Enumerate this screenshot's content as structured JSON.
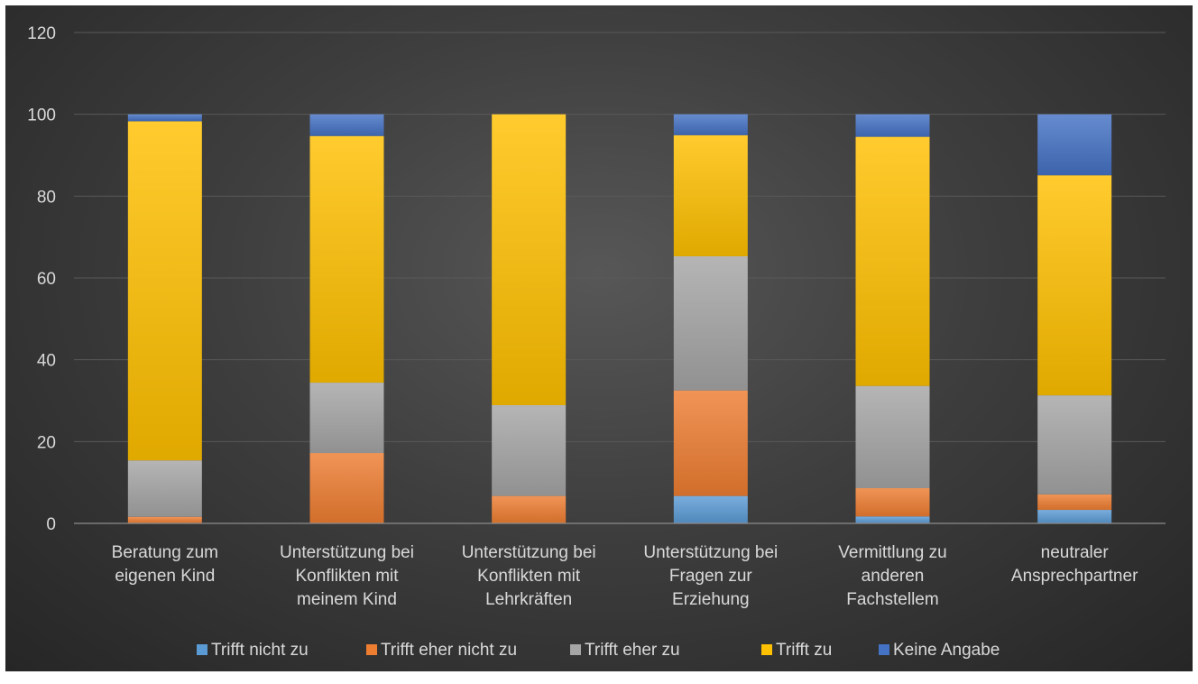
{
  "chart_data": {
    "type": "bar",
    "stacked": true,
    "title": "",
    "xlabel": "",
    "ylabel": "",
    "ylim": [
      0,
      120
    ],
    "yticks": [
      0,
      20,
      40,
      60,
      80,
      100,
      120
    ],
    "grid": true,
    "legend_position": "bottom",
    "categories": [
      [
        "Beratung zum",
        "eigenen Kind"
      ],
      [
        "Unterstützung bei",
        "Konflikten mit",
        "meinem Kind"
      ],
      [
        "Unterstützung bei",
        "Konflikten mit",
        "Lehrkräften"
      ],
      [
        "Unterstützung bei",
        "Fragen zur",
        "Erziehung"
      ],
      [
        "Vermittlung zu",
        "anderen",
        "Fachstellem"
      ],
      [
        "neutraler",
        "Ansprechpartner"
      ]
    ],
    "series": [
      {
        "name": "Trifft nicht zu",
        "color": "#5b9bd5",
        "values": [
          0,
          0,
          0,
          6.7,
          1.7,
          3.3
        ]
      },
      {
        "name": "Trifft eher nicht zu",
        "color": "#ed7d31",
        "values": [
          1.6,
          17.2,
          6.7,
          25.8,
          6.9,
          3.8
        ]
      },
      {
        "name": "Trifft eher zu",
        "color": "#a5a5a5",
        "values": [
          13.8,
          17.2,
          22.2,
          32.8,
          25.0,
          24.2
        ]
      },
      {
        "name": "Trifft zu",
        "color": "#ffc000",
        "values": [
          82.9,
          60.3,
          71.1,
          29.6,
          60.9,
          53.8
        ]
      },
      {
        "name": "Keine Angabe",
        "color": "#4472c4",
        "values": [
          1.7,
          5.3,
          0,
          5.1,
          5.5,
          14.9
        ]
      }
    ]
  }
}
